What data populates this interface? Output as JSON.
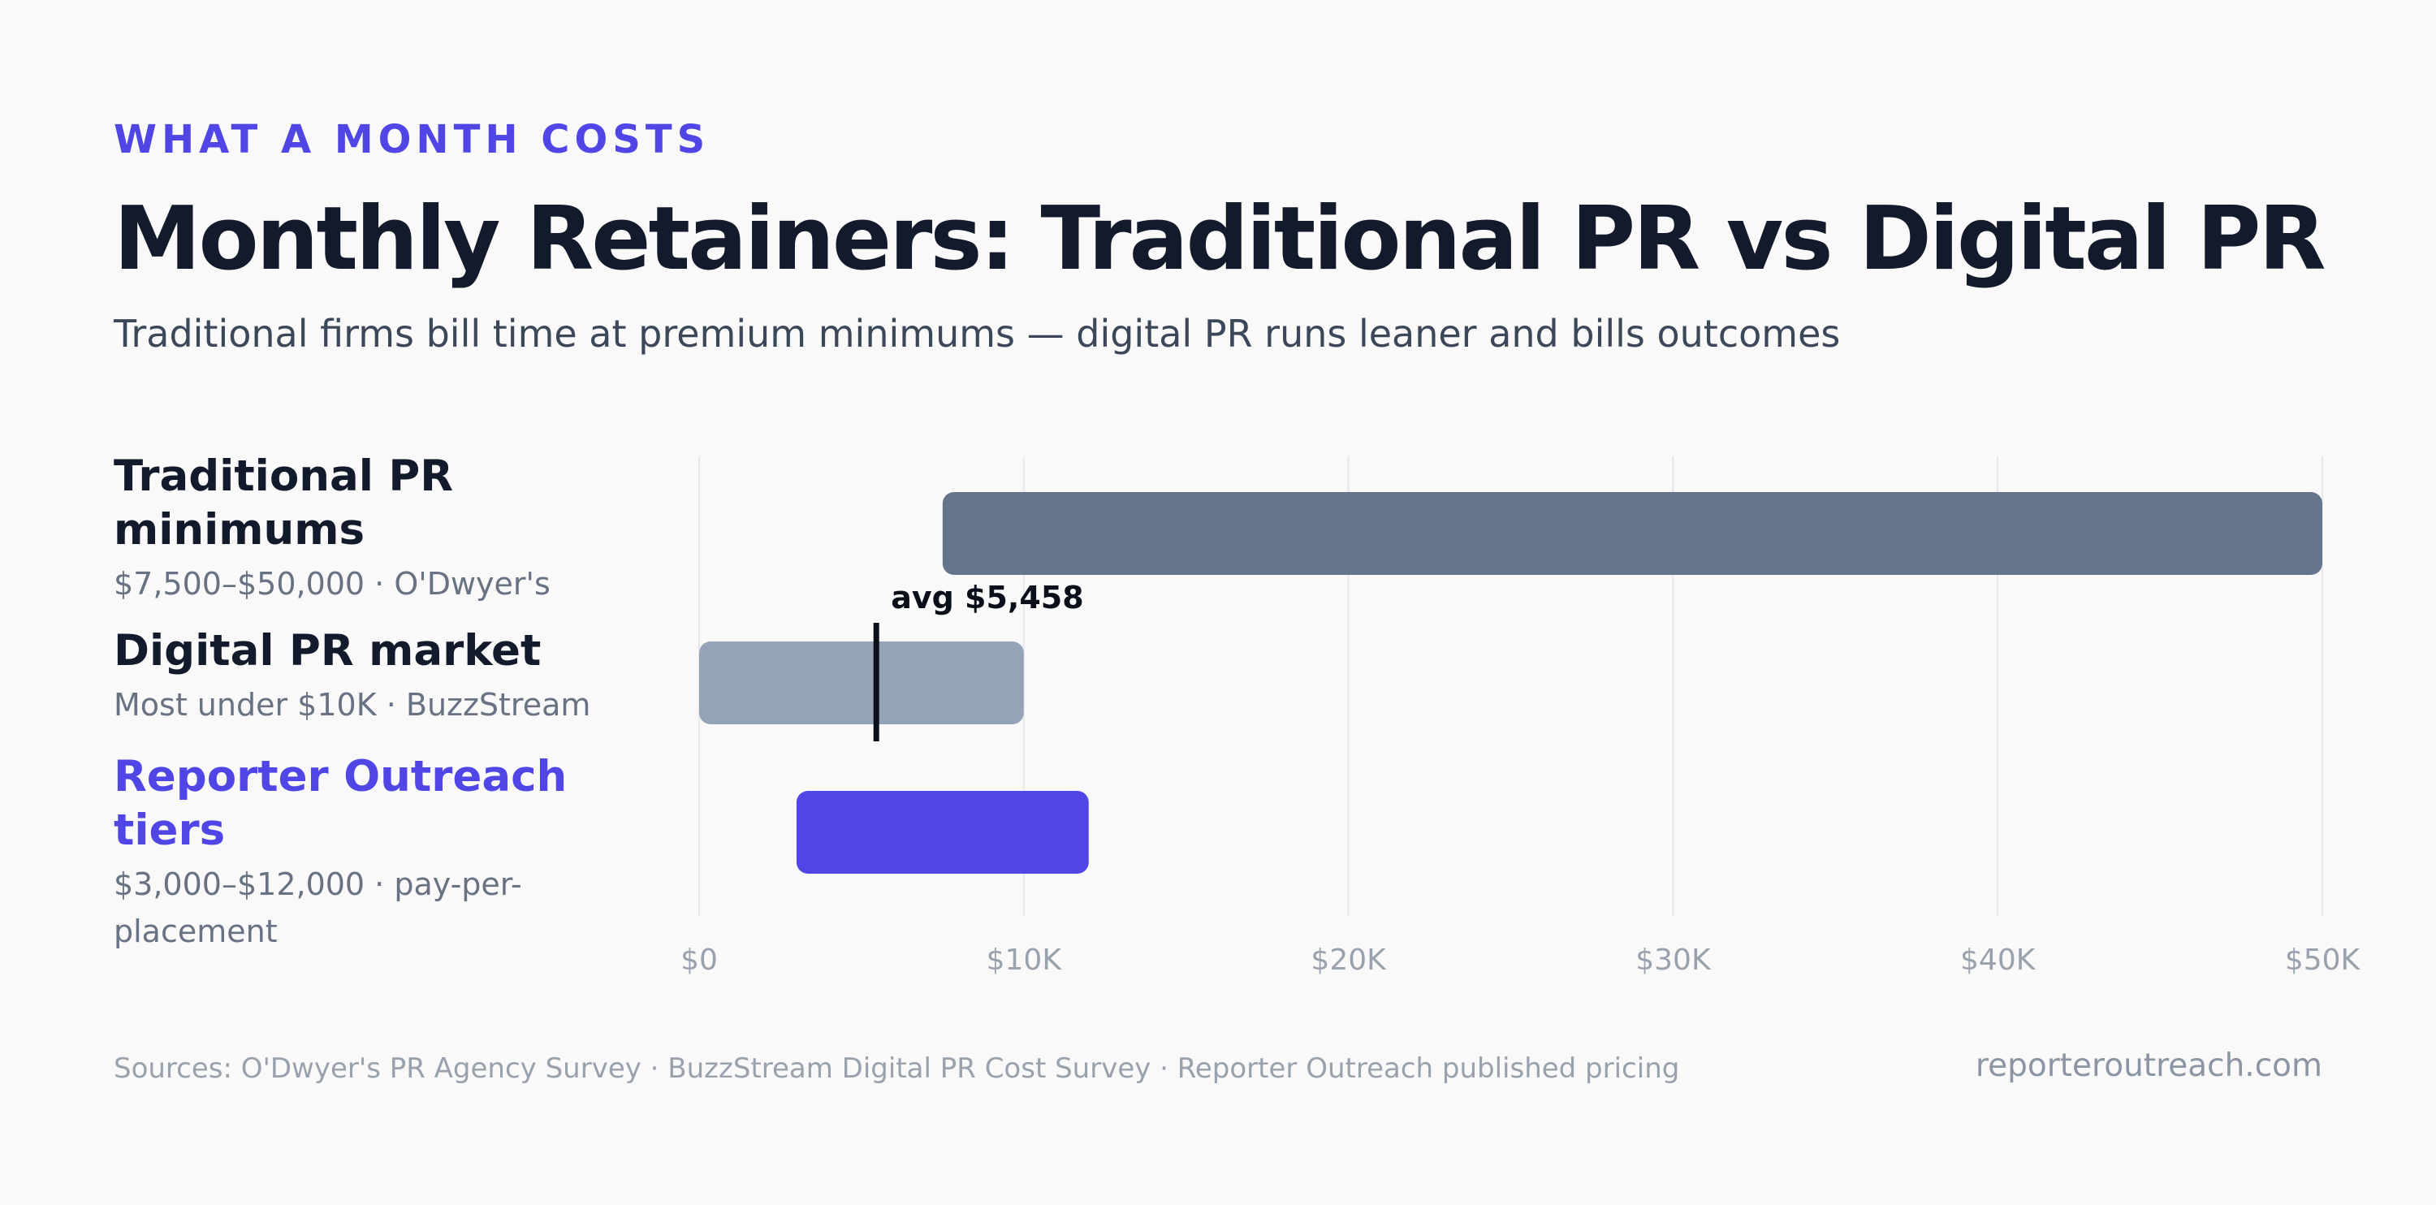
{
  "header": {
    "eyebrow": "WHAT A MONTH COSTS",
    "title": "Monthly Retainers: Traditional PR vs Digital PR",
    "subtitle": "Traditional firms bill time at premium minimums — digital PR runs leaner and bills outcomes"
  },
  "rows": [
    {
      "name": "Traditional PR minimums",
      "detail": "$7,500–$50,000 · O'Dwyer's"
    },
    {
      "name": "Digital PR market",
      "detail": "Most under $10K · BuzzStream"
    },
    {
      "name": "Reporter Outreach tiers",
      "detail": "$3,000–$12,000 · pay-per-placement"
    }
  ],
  "chart_data": {
    "type": "bar",
    "orientation": "horizontal",
    "subtype": "range",
    "categories": [
      "Traditional PR minimums",
      "Digital PR market",
      "Reporter Outreach tiers"
    ],
    "ranges": [
      {
        "category": "Traditional PR minimums",
        "min": 7500,
        "max": 50000
      },
      {
        "category": "Digital PR market",
        "min": 0,
        "max": 10000
      },
      {
        "category": "Reporter Outreach tiers",
        "min": 3000,
        "max": 12000
      }
    ],
    "markers": [
      {
        "category": "Digital PR market",
        "value": 5458,
        "label": "avg $5,458"
      }
    ],
    "xlim": [
      0,
      50000
    ],
    "xticks": [
      0,
      10000,
      20000,
      30000,
      40000,
      50000
    ],
    "xtick_labels": [
      "$0",
      "$10K",
      "$20K",
      "$30K",
      "$40K",
      "$50K"
    ],
    "grid": true,
    "colors": {
      "Traditional PR minimums": "#64748b",
      "Digital PR market": "#94a3b8",
      "Reporter Outreach tiers": "#4f46e5",
      "marker": "#0b0f1a",
      "grid": "#e6e8ec",
      "tick_label": "#99a1ad"
    }
  },
  "footer": {
    "sources": "Sources: O'Dwyer's PR Agency Survey · BuzzStream Digital PR Cost Survey · Reporter Outreach published pricing",
    "site": "reporteroutreach.com"
  }
}
